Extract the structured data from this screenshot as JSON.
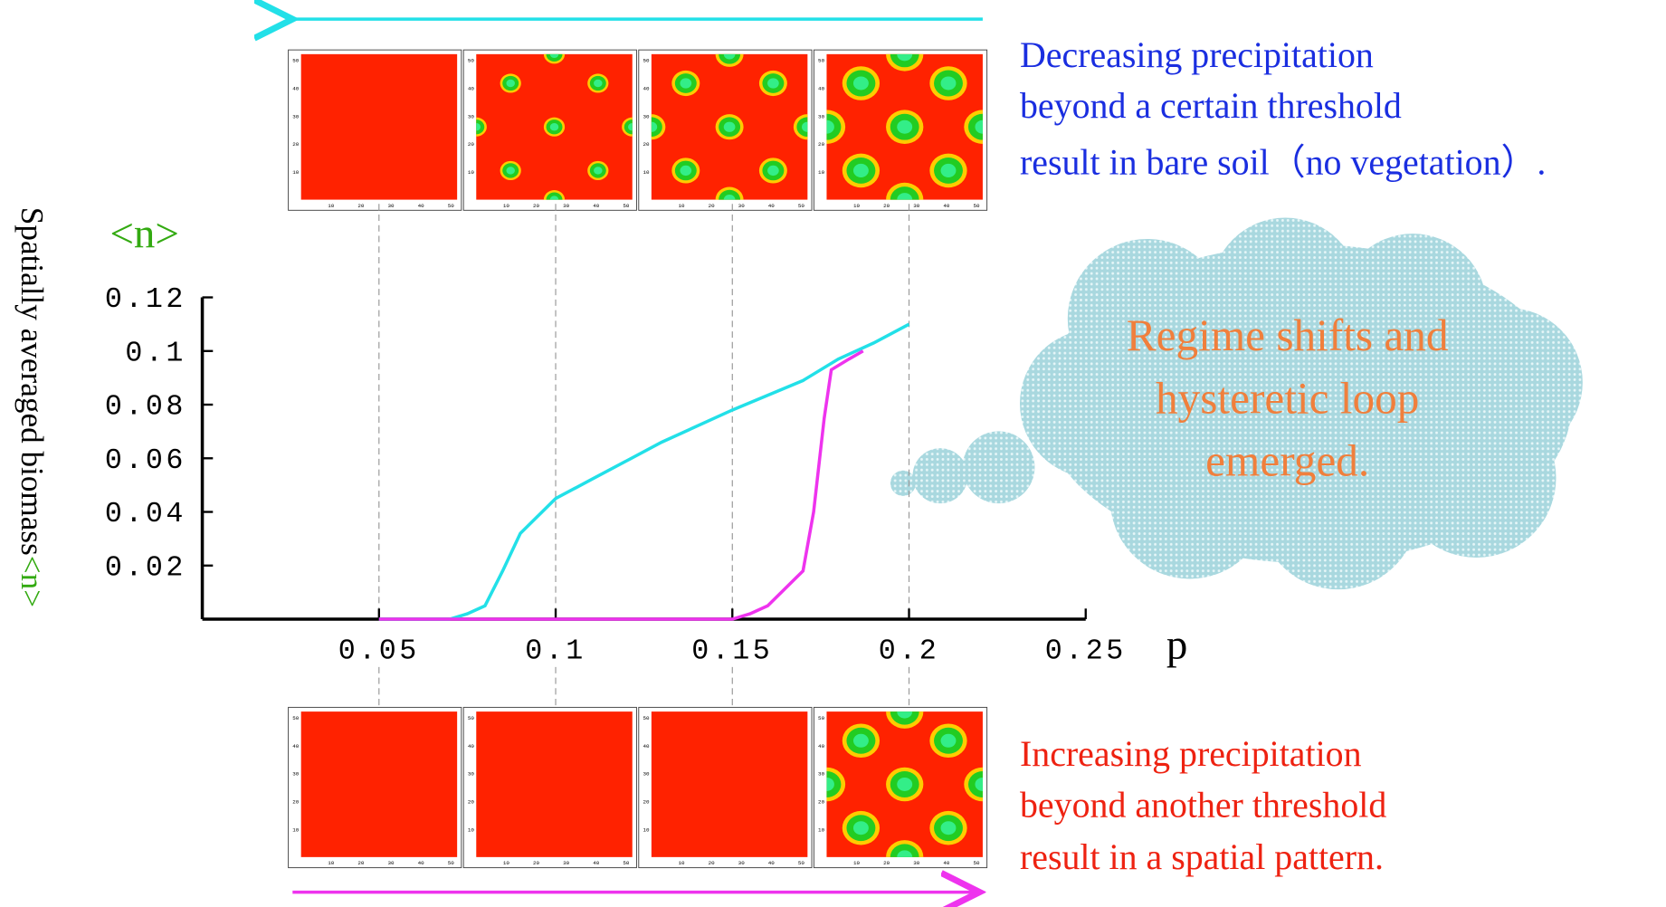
{
  "chart_data": {
    "type": "line",
    "y_axis_symbol": "<n>",
    "y_axis_label": [
      "Spatially averaged biomass",
      "<n>"
    ],
    "x_axis_label": "p",
    "xlim": [
      0,
      0.25
    ],
    "xticks": [
      0.05,
      0.1,
      0.15,
      0.2,
      0.25
    ],
    "ylim": [
      0,
      0.12
    ],
    "yticks": [
      0.02,
      0.04,
      0.06,
      0.08,
      0.1,
      0.12
    ],
    "series": [
      {
        "color": "#22e0e8",
        "x": [
          0.05,
          0.07,
          0.075,
          0.08,
          0.085,
          0.09,
          0.1,
          0.11,
          0.12,
          0.13,
          0.15,
          0.17,
          0.18,
          0.19,
          0.2
        ],
        "values": [
          0,
          0,
          0.002,
          0.005,
          0.018,
          0.032,
          0.045,
          0.052,
          0.059,
          0.066,
          0.078,
          0.089,
          0.097,
          0.103,
          0.11
        ]
      },
      {
        "color": "#ee33ee",
        "x": [
          0.05,
          0.15,
          0.155,
          0.16,
          0.17,
          0.173,
          0.176,
          0.178,
          0.183,
          0.187
        ],
        "values": [
          0,
          0,
          0.002,
          0.005,
          0.018,
          0.04,
          0.075,
          0.093,
          0.097,
          0.1
        ]
      }
    ],
    "panel_ticks": [
      "10",
      "20",
      "30",
      "40",
      "50"
    ],
    "annotations": {
      "decreasing": [
        "Decreasing precipitation",
        "beyond a certain threshold",
        "result in bare soil（no vegetation）."
      ],
      "increasing": [
        "Increasing precipitation",
        "beyond another threshold",
        "result in a spatial pattern."
      ],
      "cloud": [
        "Regime shifts and",
        "hysteretic loop",
        "emerged."
      ]
    }
  }
}
